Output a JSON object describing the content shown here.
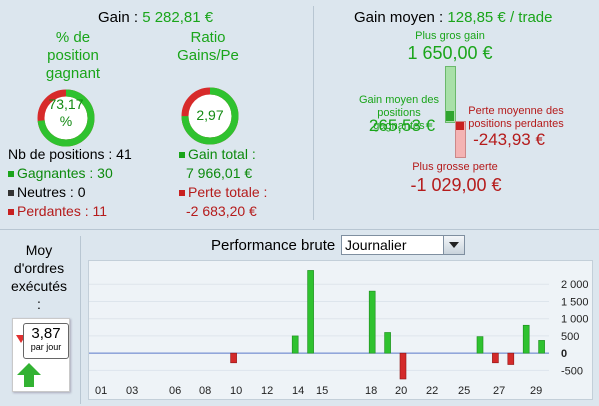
{
  "left": {
    "gain_label": "Gain :",
    "gain_value": "5 282,81 €",
    "pct_title_l1": "% de",
    "pct_title_l2": "position",
    "pct_title_l3": "gagnant",
    "pct_value_l1": "73,17",
    "pct_value_l2": "%",
    "pct_fraction": 0.7317,
    "ratio_title_l1": "Ratio",
    "ratio_title_l2": "Gains/Pe",
    "ratio_value": "2,97",
    "ratio_fraction": 0.748,
    "nb_positions": "Nb de positions : 41",
    "gagnantes": "Gagnantes : 30",
    "neutres": "Neutres : 0",
    "perdantes": "Perdantes : 11",
    "gain_total_label": "Gain total :",
    "gain_total_value": "7 966,01 €",
    "perte_totale_label": "Perte totale :",
    "perte_totale_value": "-2 683,20 €"
  },
  "right": {
    "gain_moyen_label": "Gain moyen :",
    "gain_moyen_value": "128,85 € / trade",
    "plus_gros_gain_label": "Plus gros gain",
    "plus_gros_gain_value": "1 650,00 €",
    "gain_moyen_pos_l1": "Gain moyen des",
    "gain_moyen_pos_l2": "positions gagnantes",
    "gain_moyen_pos_value": "265,53 €",
    "perte_moy_l1": "Perte moyenne des",
    "perte_moy_l2": "positions perdantes",
    "perte_moy_value": "-243,93 €",
    "plus_grosse_perte_label": "Plus grosse perte",
    "plus_grosse_perte_value": "-1 029,00 €"
  },
  "orders": {
    "title_l1": "Moy",
    "title_l2": "d'ordres",
    "title_l3": "exécutés",
    "title_l4": ":",
    "value": "3,87",
    "unit": "par jour"
  },
  "performance": {
    "label": "Performance brute",
    "period": "Journalier"
  },
  "chart_data": {
    "type": "bar",
    "x_tick_labels": [
      "01",
      "03",
      "06",
      "08",
      "10",
      "12",
      "14",
      "15",
      "18",
      "20",
      "22",
      "25",
      "27",
      "29"
    ],
    "y_tick_labels": [
      "2 000",
      "1 500",
      "1 000",
      "500",
      "0",
      "-500"
    ],
    "ylim": [
      -750,
      2500
    ],
    "bars": [
      {
        "day": 10,
        "value": -280
      },
      {
        "day": 14,
        "value": 500
      },
      {
        "day": 15,
        "value": 2400
      },
      {
        "day": 19,
        "value": 1800
      },
      {
        "day": 20,
        "value": 600
      },
      {
        "day": 21,
        "value": -750
      },
      {
        "day": 26,
        "value": 480
      },
      {
        "day": 27,
        "value": -280
      },
      {
        "day": 28,
        "value": -330
      },
      {
        "day": 29,
        "value": 810
      },
      {
        "day": 30,
        "value": 370
      }
    ],
    "colors": {
      "positive": "#2fc22f",
      "negative": "#d42a2a",
      "zero_line": "#5a78c8"
    }
  }
}
